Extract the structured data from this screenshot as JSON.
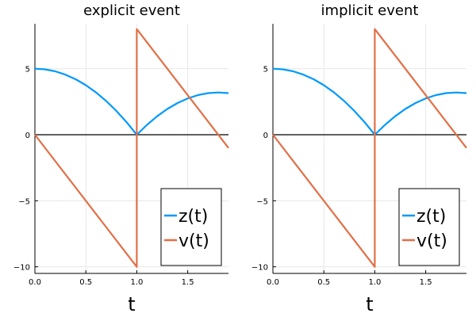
{
  "chart_data": [
    {
      "type": "line",
      "title": "explicit event",
      "xlabel": "t",
      "ylabel": "",
      "xlim": [
        0,
        1.9
      ],
      "ylim": [
        -10.5,
        8.4
      ],
      "xticks": [
        0,
        0.5,
        1,
        1.5
      ],
      "xtick_labels": [
        "0.0",
        "0.5",
        "1.0",
        "1.5"
      ],
      "yticks": [
        -10,
        -5,
        0,
        5
      ],
      "ytick_labels": [
        "−10",
        "−5",
        "0",
        "5"
      ],
      "grid": true,
      "hline_y": 0,
      "legend": "bottom-right",
      "series": [
        {
          "name": "z(t)",
          "color": "#009af9",
          "x": [
            0,
            0.1,
            0.2,
            0.3,
            0.4,
            0.5,
            0.6,
            0.7,
            0.8,
            0.9,
            1.0,
            1.1,
            1.2,
            1.3,
            1.4,
            1.5,
            1.6,
            1.7,
            1.8,
            1.9
          ],
          "y": [
            5.0,
            4.95,
            4.8,
            4.55,
            4.2,
            3.75,
            3.2,
            2.55,
            1.8,
            0.95,
            0.0,
            0.75,
            1.4,
            1.95,
            2.4,
            2.75,
            3.0,
            3.15,
            3.2,
            3.15
          ]
        },
        {
          "name": "v(t)",
          "color": "#e26f46",
          "x": [
            0,
            1.0,
            1.0,
            1.9
          ],
          "y": [
            0,
            -10,
            8,
            -1
          ]
        }
      ]
    },
    {
      "type": "line",
      "title": "implicit event",
      "xlabel": "t",
      "ylabel": "",
      "xlim": [
        0,
        1.9
      ],
      "ylim": [
        -10.5,
        8.4
      ],
      "xticks": [
        0,
        0.5,
        1,
        1.5
      ],
      "xtick_labels": [
        "0.0",
        "0.5",
        "1.0",
        "1.5"
      ],
      "yticks": [
        -10,
        -5,
        0,
        5
      ],
      "ytick_labels": [
        "−10",
        "−5",
        "0",
        "5"
      ],
      "grid": true,
      "hline_y": 0,
      "legend": "bottom-right",
      "series": [
        {
          "name": "z(t)",
          "color": "#009af9",
          "x": [
            0,
            0.1,
            0.2,
            0.3,
            0.4,
            0.5,
            0.6,
            0.7,
            0.8,
            0.9,
            1.0,
            1.1,
            1.2,
            1.3,
            1.4,
            1.5,
            1.6,
            1.7,
            1.8,
            1.9
          ],
          "y": [
            5.0,
            4.95,
            4.8,
            4.55,
            4.2,
            3.75,
            3.2,
            2.55,
            1.8,
            0.95,
            0.0,
            0.75,
            1.4,
            1.95,
            2.4,
            2.75,
            3.0,
            3.15,
            3.2,
            3.15
          ]
        },
        {
          "name": "v(t)",
          "color": "#e26f46",
          "x": [
            0,
            1.0,
            1.0,
            1.9
          ],
          "y": [
            0,
            -10,
            8,
            -1
          ]
        }
      ]
    }
  ]
}
